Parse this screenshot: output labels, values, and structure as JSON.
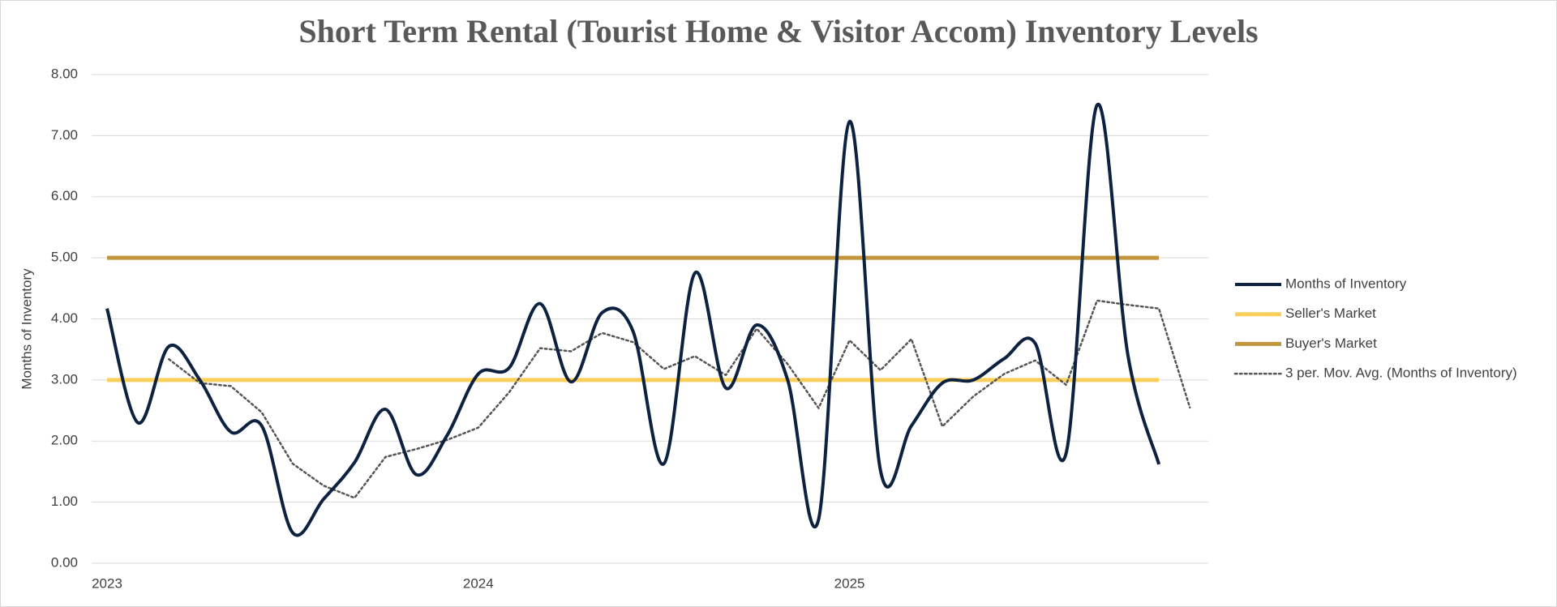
{
  "chart_data": {
    "type": "line",
    "title": "Short Term Rental (Tourist Home & Visitor Accom) Inventory Levels",
    "y_label": "Months of Inventory",
    "categories": [
      "2023",
      null,
      null,
      null,
      null,
      null,
      null,
      null,
      null,
      null,
      null,
      null,
      "2024",
      null,
      null,
      null,
      null,
      null,
      null,
      null,
      null,
      null,
      null,
      null,
      "2025",
      null,
      null,
      null,
      null,
      null,
      null,
      null,
      null,
      null,
      null,
      null
    ],
    "ylim": [
      0,
      8
    ],
    "yticks": [
      {
        "value": 0,
        "label": "0.00"
      },
      {
        "value": 1,
        "label": "1.00"
      },
      {
        "value": 2,
        "label": "2.00"
      },
      {
        "value": 3,
        "label": "3.00"
      },
      {
        "value": 4,
        "label": "4.00"
      },
      {
        "value": 5,
        "label": "5.00"
      },
      {
        "value": 6,
        "label": "6.00"
      },
      {
        "value": 7,
        "label": "7.00"
      },
      {
        "value": 8,
        "label": "8.00"
      }
    ],
    "grid": true,
    "legend": "right",
    "series": [
      {
        "name": "Months of Inventory",
        "color": "#0d2240",
        "style": "smooth",
        "values": [
          4.17,
          2.3,
          3.55,
          3.0,
          2.15,
          2.25,
          0.5,
          1.05,
          1.65,
          2.52,
          1.45,
          2.1,
          3.1,
          3.2,
          4.25,
          2.97,
          4.1,
          3.8,
          1.63,
          4.75,
          2.87,
          3.9,
          3.0,
          0.72,
          7.23,
          1.52,
          2.25,
          2.95,
          3.0,
          3.35,
          3.6,
          1.8,
          7.5,
          3.4,
          1.62,
          null
        ]
      },
      {
        "name": "Seller's Market",
        "color": "#fccf5a",
        "style": "solid",
        "values": [
          3,
          3,
          3,
          3,
          3,
          3,
          3,
          3,
          3,
          3,
          3,
          3,
          3,
          3,
          3,
          3,
          3,
          3,
          3,
          3,
          3,
          3,
          3,
          3,
          3,
          3,
          3,
          3,
          3,
          3,
          3,
          3,
          3,
          3,
          3,
          null
        ]
      },
      {
        "name": "Buyer's Market",
        "color": "#c2963e",
        "style": "solid",
        "values": [
          5,
          5,
          5,
          5,
          5,
          5,
          5,
          5,
          5,
          5,
          5,
          5,
          5,
          5,
          5,
          5,
          5,
          5,
          5,
          5,
          5,
          5,
          5,
          5,
          5,
          5,
          5,
          5,
          5,
          5,
          5,
          5,
          5,
          5,
          5,
          null
        ]
      },
      {
        "name": "3 per. Mov. Avg. (Months of Inventory)",
        "color": "#555555",
        "style": "dotted",
        "values": [
          null,
          null,
          3.34,
          2.95,
          2.9,
          2.47,
          1.63,
          1.27,
          1.07,
          1.74,
          1.87,
          2.02,
          2.22,
          2.8,
          3.52,
          3.47,
          3.77,
          3.62,
          3.18,
          3.39,
          3.08,
          3.84,
          3.26,
          2.54,
          3.65,
          3.16,
          3.67,
          2.24,
          2.73,
          3.1,
          3.32,
          2.92,
          4.3,
          4.23,
          4.17,
          2.55
        ]
      }
    ]
  }
}
